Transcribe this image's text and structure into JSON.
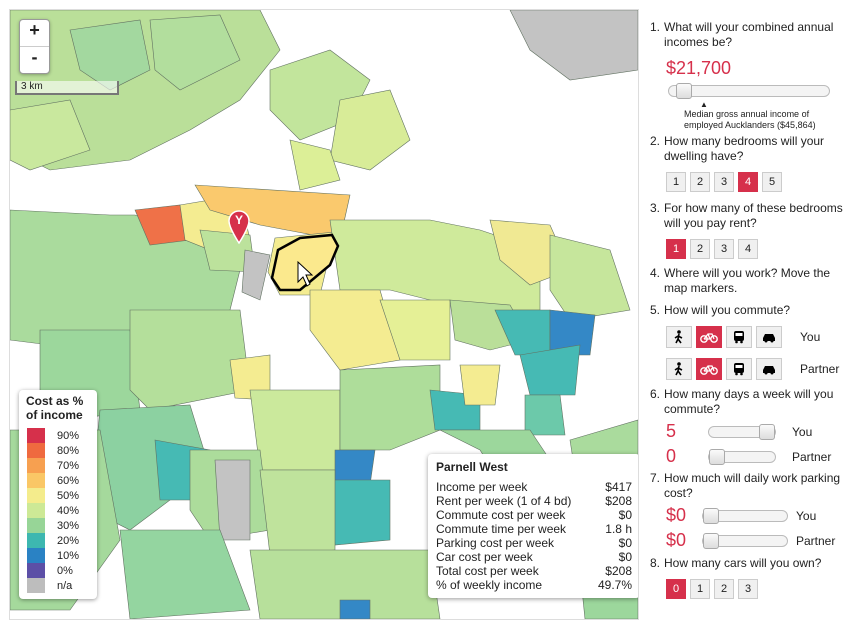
{
  "map": {
    "zoom_in": "+",
    "zoom_out": "-",
    "scale_label": "3 km",
    "marker_letter": "Y"
  },
  "legend": {
    "title": "Cost as % of income",
    "items": [
      {
        "label": "90%",
        "color": "#d6304b"
      },
      {
        "label": "80%",
        "color": "#ef6a3f"
      },
      {
        "label": "70%",
        "color": "#f7a050"
      },
      {
        "label": "60%",
        "color": "#fac766"
      },
      {
        "label": "50%",
        "color": "#f4ec8c"
      },
      {
        "label": "40%",
        "color": "#cde996"
      },
      {
        "label": "30%",
        "color": "#97d597"
      },
      {
        "label": "20%",
        "color": "#3db7b0"
      },
      {
        "label": "10%",
        "color": "#2a82c4"
      },
      {
        "label": "0%",
        "color": "#5c4fa6"
      },
      {
        "label": "n/a",
        "color": "#bdbdbd"
      }
    ]
  },
  "tooltip": {
    "title": "Parnell West",
    "rows": [
      {
        "label": "Income per week",
        "value": "$417"
      },
      {
        "label": "Rent per week (1 of 4 bd)",
        "value": "$208"
      },
      {
        "label": "Commute cost per week",
        "value": "$0"
      },
      {
        "label": "Commute time per week",
        "value": "1.8 h"
      },
      {
        "label": "Parking cost per week",
        "value": "$0"
      },
      {
        "label": "Car cost per week",
        "value": "$0"
      },
      {
        "label": "Total cost per week",
        "value": "$208"
      },
      {
        "label": "% of weekly income",
        "value": "49.7%"
      }
    ]
  },
  "panel": {
    "q1": {
      "num": "1.",
      "text": "What will your combined annual incomes be?",
      "value": "$21,700",
      "slider_fraction": 0.05,
      "note": "Median gross annual income of employed Aucklanders ($45,864)"
    },
    "q2": {
      "num": "2.",
      "text": "How many bedrooms will your dwelling have?",
      "options": [
        "1",
        "2",
        "3",
        "4",
        "5"
      ],
      "selected": "4"
    },
    "q3": {
      "num": "3.",
      "text": "For how many of these bedrooms will you pay rent?",
      "options": [
        "1",
        "2",
        "3",
        "4"
      ],
      "selected": "1"
    },
    "q4": {
      "num": "4.",
      "text": "Where will you work? Move the map markers."
    },
    "q5": {
      "num": "5.",
      "text": "How will you commute?",
      "you_label": "You",
      "partner_label": "Partner",
      "modes": [
        "walk-icon",
        "bike-icon",
        "bus-icon",
        "car-icon"
      ],
      "selected_mode": "bike-icon"
    },
    "q6": {
      "num": "6.",
      "text": "How many days a week will you commute?",
      "you_value": "5",
      "partner_value": "0",
      "you_label": "You",
      "partner_label": "Partner",
      "you_fraction": 1.0,
      "partner_fraction": 0.0
    },
    "q7": {
      "num": "7.",
      "text": "How much will daily work parking cost?",
      "you_value": "$0",
      "partner_value": "$0",
      "you_label": "You",
      "partner_label": "Partner",
      "you_fraction": 0.0,
      "partner_fraction": 0.0
    },
    "q8": {
      "num": "8.",
      "text": "How many cars will you own?",
      "options": [
        "0",
        "1",
        "2",
        "3"
      ],
      "selected": "0"
    }
  }
}
